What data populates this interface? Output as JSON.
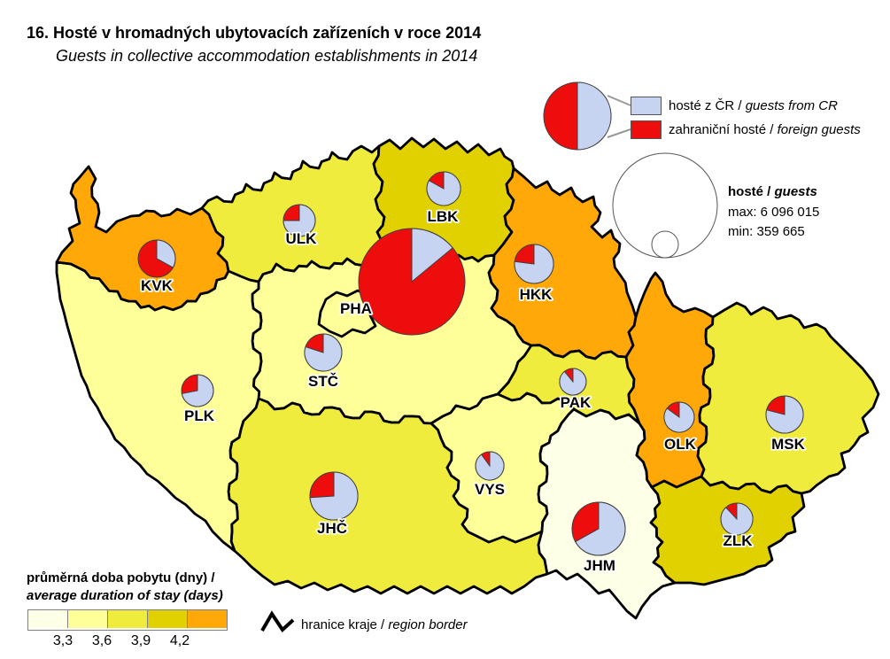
{
  "title": "16. Hosté v hromadných ubytovacích zařízeních v roce 2014",
  "subtitle": "Guests in collective accommodation establishments in 2014",
  "colors": {
    "domestic_blue": "#c6d3f1",
    "foreign_red": "#ee0d0d",
    "pie_outline": "#3f3f3f",
    "region_border": "#000000",
    "duration_scale": [
      "#fdffe7",
      "#ffff99",
      "#f0ec3d",
      "#e2d100",
      "#ffa808"
    ]
  },
  "pie_legend": {
    "domestic": {
      "cs": "hosté z ČR /",
      "en": "guests from CR"
    },
    "foreign": {
      "cs": "zahraniční hosté /",
      "en": "foreign guests"
    },
    "split_pct": {
      "domestic": 50,
      "foreign": 50
    }
  },
  "size_legend": {
    "title_cs": "hosté /",
    "title_en": "guests",
    "max": "max: 6 096 015",
    "min": "min: 359 665"
  },
  "duration_legend": {
    "title_cs": "průměrná doba pobytu (dny) /",
    "title_en": "average duration of stay (days)",
    "ticks": [
      "3,3",
      "3,6",
      "3,9",
      "4,2"
    ]
  },
  "border_legend": {
    "cs": "hranice kraje /",
    "en": "region border"
  },
  "regions": [
    {
      "code": "PHA",
      "label": "PHA",
      "duration_class": 1,
      "foreign_pct": 86,
      "pie_r": 60
    },
    {
      "code": "STC",
      "label": "STČ",
      "duration_class": 1,
      "foreign_pct": 20,
      "pie_r": 21
    },
    {
      "code": "JHC",
      "label": "JHČ",
      "duration_class": 2,
      "foreign_pct": 26,
      "pie_r": 27
    },
    {
      "code": "PLK",
      "label": "PLK",
      "duration_class": 1,
      "foreign_pct": 28,
      "pie_r": 18
    },
    {
      "code": "KVK",
      "label": "KVK",
      "duration_class": 4,
      "foreign_pct": 67,
      "pie_r": 21
    },
    {
      "code": "ULK",
      "label": "ULK",
      "duration_class": 2,
      "foreign_pct": 25,
      "pie_r": 18
    },
    {
      "code": "LBK",
      "label": "LBK",
      "duration_class": 3,
      "foreign_pct": 17,
      "pie_r": 19
    },
    {
      "code": "HKK",
      "label": "HKK",
      "duration_class": 4,
      "foreign_pct": 23,
      "pie_r": 22
    },
    {
      "code": "PAK",
      "label": "PAK",
      "duration_class": 2,
      "foreign_pct": 11,
      "pie_r": 15
    },
    {
      "code": "VYS",
      "label": "VYS",
      "duration_class": 1,
      "foreign_pct": 10,
      "pie_r": 16
    },
    {
      "code": "JHM",
      "label": "JHM",
      "duration_class": 0,
      "foreign_pct": 33,
      "pie_r": 30
    },
    {
      "code": "OLK",
      "label": "OLK",
      "duration_class": 4,
      "foreign_pct": 15,
      "pie_r": 17
    },
    {
      "code": "ZLK",
      "label": "ZLK",
      "duration_class": 3,
      "foreign_pct": 12,
      "pie_r": 18
    },
    {
      "code": "MSK",
      "label": "MSK",
      "duration_class": 2,
      "foreign_pct": 21,
      "pie_r": 21
    }
  ]
}
